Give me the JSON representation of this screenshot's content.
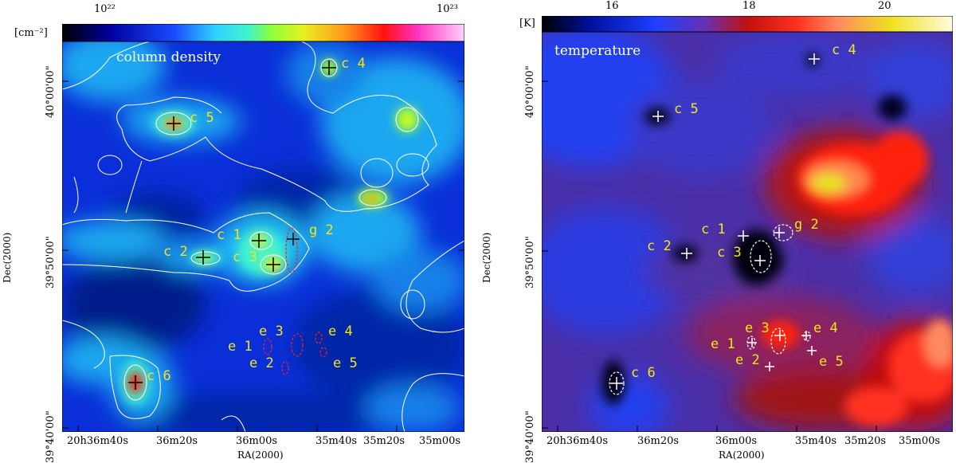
{
  "left": {
    "unit": "[cm⁻²]",
    "colorbar_ticks": [
      "10²²",
      "10²³"
    ],
    "title": "column density",
    "ylabel": "Dec(2000)",
    "xlabel": "RA(2000)",
    "yticks": [
      "40°00'00\"",
      "39°50'00\"",
      "39°40'00\""
    ],
    "xticks": [
      "20h36m40s",
      "36m20s",
      "36m00s",
      "35m40s",
      "35m20s",
      "35m00s"
    ],
    "sources": [
      "c 4",
      "c 5",
      "c 1",
      "g 2",
      "c 2",
      "c 3",
      "e 3",
      "e 4",
      "e 1",
      "e 2",
      "e 5",
      "c 6"
    ]
  },
  "right": {
    "unit": "[K]",
    "colorbar_ticks": [
      "16",
      "18",
      "20"
    ],
    "title": "temperature",
    "ylabel": "Dec(2000)",
    "xlabel": "RA(2000)",
    "yticks": [
      "40°00'00\"",
      "39°50'00\"",
      "39°40'00\""
    ],
    "xticks": [
      "20h36m40s",
      "36m20s",
      "36m00s",
      "35m40s",
      "35m20s",
      "35m00s"
    ],
    "sources": [
      "c 4",
      "c 5",
      "c 1",
      "g 2",
      "c 2",
      "c 3",
      "e 3",
      "e 4",
      "e 1",
      "e 2",
      "e 5",
      "c 6"
    ]
  }
}
